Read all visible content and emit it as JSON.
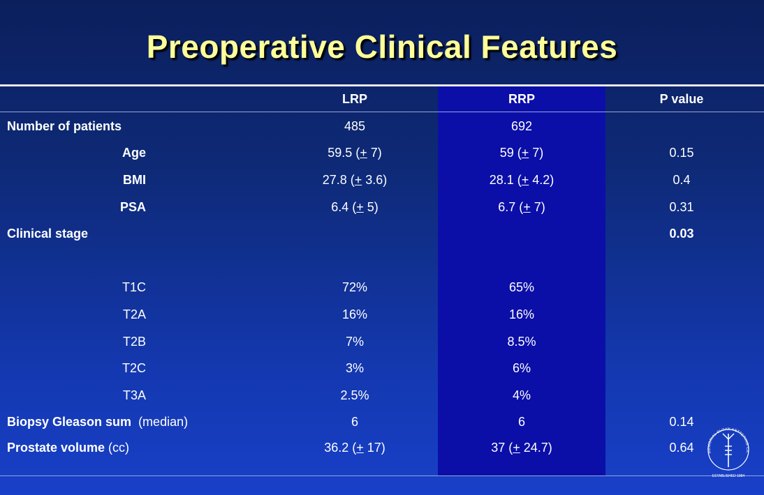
{
  "title": "Preoperative Clinical Features",
  "columns": {
    "lrp": "LRP",
    "rrp": "RRP",
    "p": "P value"
  },
  "rows": [
    {
      "label": "Number of patients",
      "lrp": "485",
      "rrp": "692",
      "p": ""
    },
    {
      "label": "Age",
      "lrp_a": "59.5 (",
      "lrp_pm": "+",
      "lrp_b": " 7)",
      "rrp_a": "59 (",
      "rrp_pm": "+",
      "rrp_b": " 7)",
      "p": "0.15"
    },
    {
      "label": "BMI",
      "lrp_a": "27.8 (",
      "lrp_pm": "+",
      "lrp_b": " 3.6)",
      "rrp_a": "28.1 (",
      "rrp_pm": "+",
      "rrp_b": " 4.2)",
      "p": "0.4"
    },
    {
      "label": "PSA",
      "lrp_a": "6.4 (",
      "lrp_pm": "+",
      "lrp_b": " 5)",
      "rrp_a": "6.7 (",
      "rrp_pm": "+",
      "rrp_b": " 7)",
      "p": "0.31"
    },
    {
      "label": "Clinical stage",
      "p": "0.03"
    },
    {
      "label": "T1C",
      "lrp": "72%",
      "rrp": "65%"
    },
    {
      "label": "T2A",
      "lrp": "16%",
      "rrp": "16%"
    },
    {
      "label": "T2B",
      "lrp": "7%",
      "rrp": "8.5%"
    },
    {
      "label": "T2C",
      "lrp": "3%",
      "rrp": "6%"
    },
    {
      "label": "T3A",
      "lrp": "2.5%",
      "rrp": "4%"
    },
    {
      "label": "Biopsy Gleason sum",
      "label_suffix": "  (median)",
      "lrp": "6",
      "rrp": "6",
      "p": "0.14"
    },
    {
      "label": "Prostate volume",
      "label_suffix": " (cc)",
      "lrp_a": "36.2 (",
      "lrp_pm": "+",
      "lrp_b": " 17)",
      "rrp_a": "37 (",
      "rrp_pm": "+",
      "rrp_b": " 24.7)",
      "p": "0.64"
    }
  ],
  "logo": {
    "icon": "memorial-sloan-kettering-seal",
    "text": "MEMORIAL SLOAN-KETTERING CANCER CENTER · ESTABLISHED 1884"
  }
}
